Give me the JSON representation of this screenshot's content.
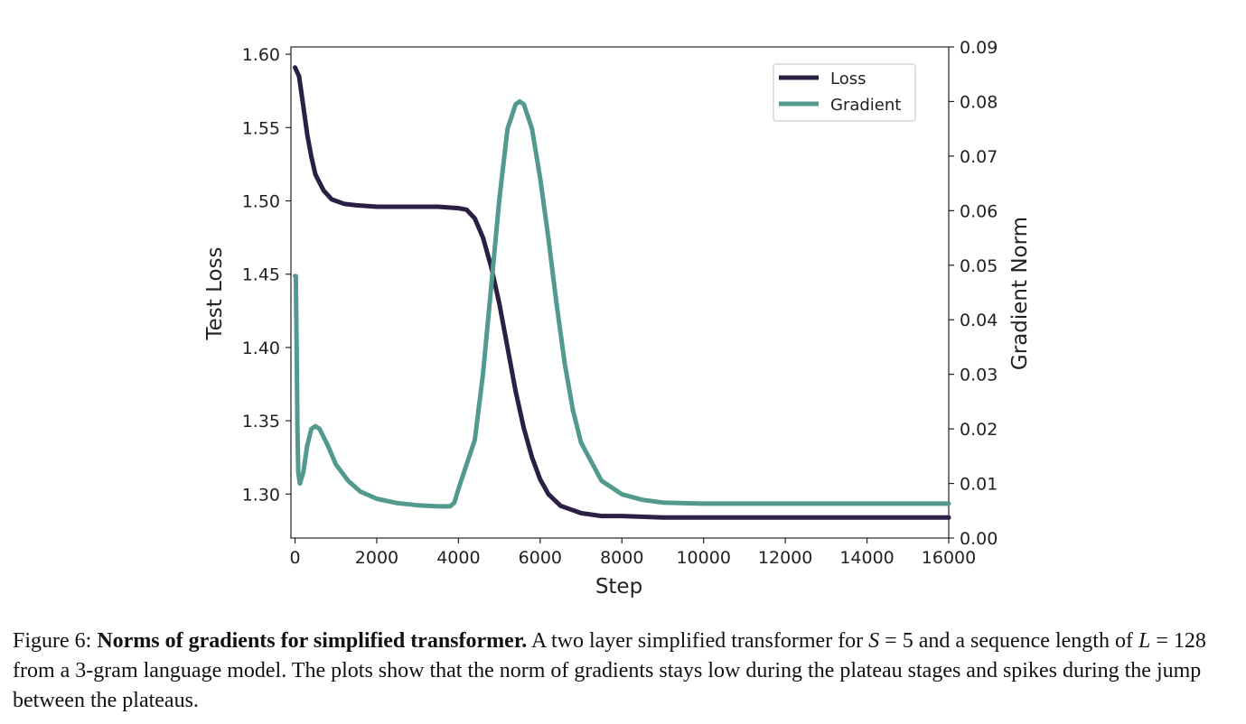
{
  "chart_data": {
    "type": "line",
    "xlabel": "Step",
    "ylabel_left": "Test Loss",
    "ylabel_right": "Gradient Norm",
    "xlim": [
      -100,
      16000
    ],
    "ylim_left": [
      1.27,
      1.605
    ],
    "ylim_right": [
      0.0,
      0.09
    ],
    "x_ticks": [
      0,
      2000,
      4000,
      6000,
      8000,
      10000,
      12000,
      14000,
      16000
    ],
    "y_ticks_left": [
      "1.30",
      "1.35",
      "1.40",
      "1.45",
      "1.50",
      "1.55",
      "1.60"
    ],
    "y_ticks_right": [
      "0.00",
      "0.01",
      "0.02",
      "0.03",
      "0.04",
      "0.05",
      "0.06",
      "0.07",
      "0.08",
      "0.09"
    ],
    "legend_position": "top-right",
    "grid": false,
    "series": [
      {
        "name": "Loss",
        "axis": "left",
        "color": "#2b1f44",
        "x": [
          0,
          100,
          200,
          300,
          400,
          500,
          700,
          900,
          1200,
          1500,
          2000,
          2500,
          3000,
          3500,
          4000,
          4200,
          4400,
          4600,
          4800,
          5000,
          5200,
          5400,
          5600,
          5800,
          6000,
          6200,
          6500,
          7000,
          7500,
          8000,
          9000,
          10000,
          12000,
          14000,
          16000
        ],
        "y": [
          1.591,
          1.585,
          1.565,
          1.545,
          1.53,
          1.518,
          1.507,
          1.501,
          1.498,
          1.497,
          1.496,
          1.496,
          1.496,
          1.496,
          1.495,
          1.494,
          1.488,
          1.475,
          1.455,
          1.43,
          1.4,
          1.37,
          1.345,
          1.325,
          1.31,
          1.3,
          1.292,
          1.287,
          1.285,
          1.285,
          1.284,
          1.284,
          1.284,
          1.284,
          1.284
        ]
      },
      {
        "name": "Gradient",
        "axis": "right",
        "color": "#529a8e",
        "x": [
          0,
          20,
          40,
          60,
          80,
          120,
          200,
          300,
          400,
          500,
          600,
          800,
          1000,
          1300,
          1600,
          2000,
          2500,
          3000,
          3500,
          3800,
          3900,
          4000,
          4200,
          4400,
          4600,
          4800,
          5000,
          5200,
          5400,
          5500,
          5600,
          5800,
          6000,
          6200,
          6400,
          6600,
          6800,
          7000,
          7500,
          8000,
          8500,
          9000,
          10000,
          12000,
          14000,
          16000
        ],
        "y": [
          0.048,
          0.048,
          0.035,
          0.02,
          0.012,
          0.01,
          0.012,
          0.017,
          0.02,
          0.0205,
          0.02,
          0.017,
          0.0135,
          0.0105,
          0.0085,
          0.0072,
          0.0064,
          0.006,
          0.0058,
          0.0058,
          0.0065,
          0.009,
          0.0135,
          0.018,
          0.03,
          0.046,
          0.062,
          0.075,
          0.0795,
          0.08,
          0.0795,
          0.075,
          0.066,
          0.055,
          0.043,
          0.032,
          0.0235,
          0.0175,
          0.0105,
          0.008,
          0.007,
          0.0065,
          0.0063,
          0.0063,
          0.0063,
          0.0063
        ]
      }
    ]
  },
  "caption": {
    "prefix": "Figure 6: ",
    "bold": "Norms of gradients for simplified transformer.",
    "text1": " A two layer simplified transformer for ",
    "math1": "S",
    "text2": " = 5 and a sequence length of ",
    "math2": "L",
    "text3": " = 128 from a 3-gram language model. The plots show that the norm of gradients stays low during the plateau stages and spikes during the jump between the plateaus."
  }
}
